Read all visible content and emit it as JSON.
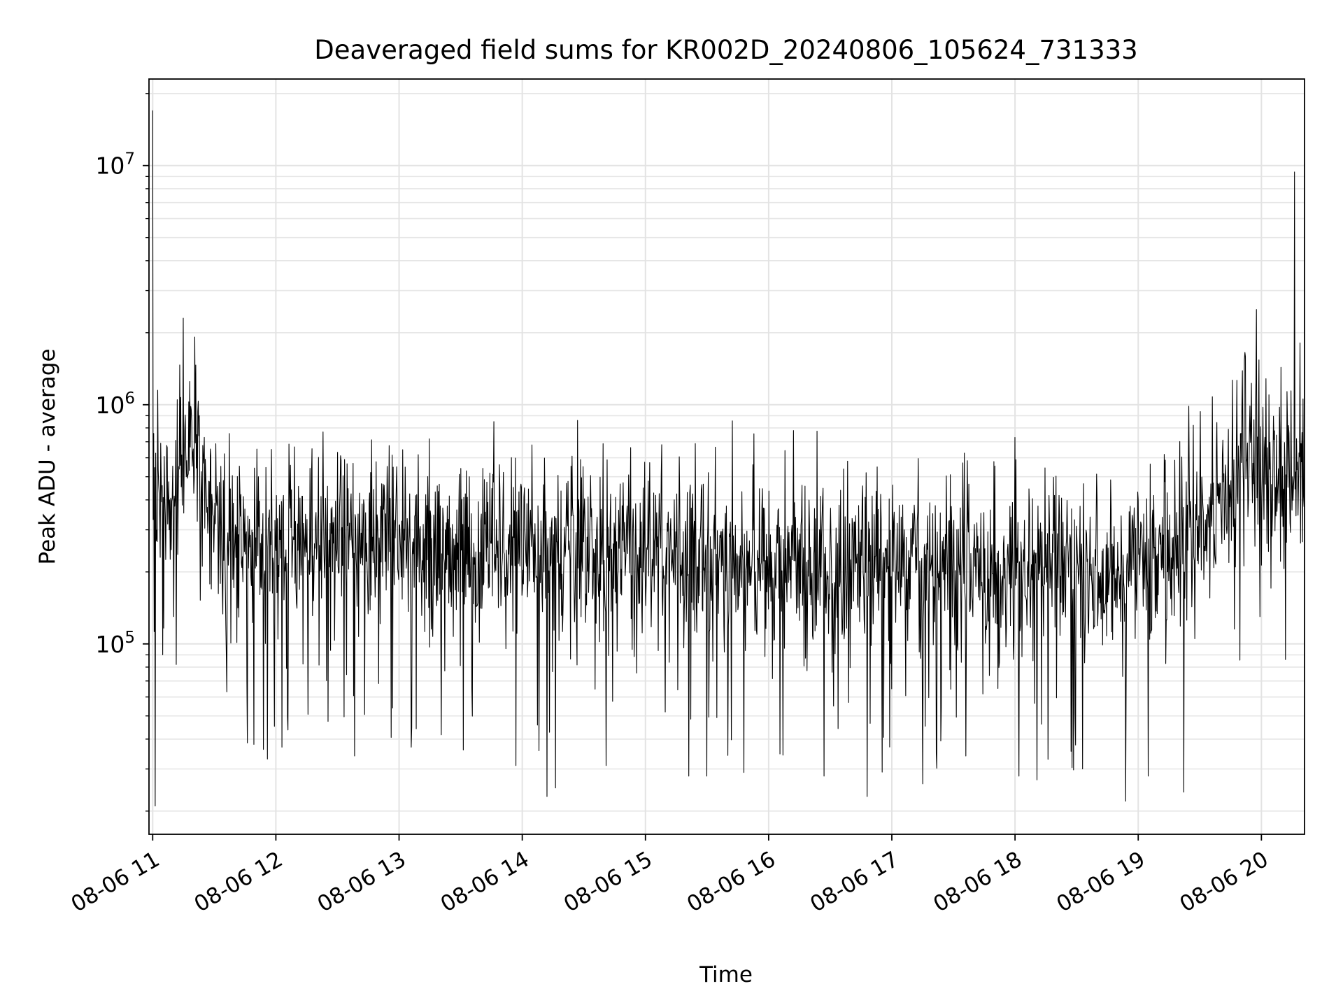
{
  "chart_data": {
    "type": "line",
    "title": "Deaveraged field sums for KR002D_20240806_105624_731333",
    "xlabel": "Time",
    "ylabel": "Peak ADU - average",
    "yscale": "log",
    "ylim": [
      16000,
      23000000
    ],
    "xlim_hours": [
      10.97,
      20.35
    ],
    "grid": true,
    "x_ticks": [
      {
        "label": "08-06 11",
        "hour": 11
      },
      {
        "label": "08-06 12",
        "hour": 12
      },
      {
        "label": "08-06 13",
        "hour": 13
      },
      {
        "label": "08-06 14",
        "hour": 14
      },
      {
        "label": "08-06 15",
        "hour": 15
      },
      {
        "label": "08-06 16",
        "hour": 16
      },
      {
        "label": "08-06 17",
        "hour": 17
      },
      {
        "label": "08-06 18",
        "hour": 18
      },
      {
        "label": "08-06 19",
        "hour": 19
      },
      {
        "label": "08-06 20",
        "hour": 20
      }
    ],
    "y_ticks": [
      {
        "base": "10",
        "exp": "5",
        "value": 100000
      },
      {
        "base": "10",
        "exp": "6",
        "value": 1000000
      },
      {
        "base": "10",
        "exp": "7",
        "value": 10000000
      }
    ],
    "series": [
      {
        "name": "field sums",
        "color": "#000000",
        "baseline_profile": [
          [
            10.97,
            450000
          ],
          [
            11.1,
            330000
          ],
          [
            11.25,
            600000
          ],
          [
            11.35,
            850000
          ],
          [
            11.45,
            330000
          ],
          [
            11.7,
            260000
          ],
          [
            11.9,
            250000
          ],
          [
            12.3,
            280000
          ],
          [
            13.0,
            270000
          ],
          [
            13.5,
            250000
          ],
          [
            14.0,
            245000
          ],
          [
            14.5,
            240000
          ],
          [
            15.0,
            230000
          ],
          [
            15.5,
            225000
          ],
          [
            16.0,
            215000
          ],
          [
            16.5,
            205000
          ],
          [
            17.0,
            200000
          ],
          [
            17.5,
            200000
          ],
          [
            18.0,
            195000
          ],
          [
            18.5,
            190000
          ],
          [
            19.0,
            200000
          ],
          [
            19.3,
            240000
          ],
          [
            19.6,
            330000
          ],
          [
            19.85,
            500000
          ],
          [
            19.95,
            800000
          ],
          [
            20.05,
            480000
          ],
          [
            20.2,
            500000
          ],
          [
            20.35,
            520000
          ]
        ],
        "peaks": [
          {
            "hour": 11.0,
            "value": 17000000
          },
          {
            "hour": 11.25,
            "value": 2300000
          },
          {
            "hour": 11.04,
            "value": 1150000
          },
          {
            "hour": 11.2,
            "value": 1050000
          },
          {
            "hour": 11.3,
            "value": 1250000
          },
          {
            "hour": 12.05,
            "value": 770000
          },
          {
            "hour": 13.77,
            "value": 850000
          },
          {
            "hour": 14.45,
            "value": 860000
          },
          {
            "hour": 16.2,
            "value": 780000
          },
          {
            "hour": 18.0,
            "value": 730000
          },
          {
            "hour": 19.6,
            "value": 1080000
          },
          {
            "hour": 19.96,
            "value": 2500000
          },
          {
            "hour": 20.06,
            "value": 1100000
          },
          {
            "hour": 20.27,
            "value": 9400000
          }
        ],
        "dips": [
          {
            "hour": 11.02,
            "value": 21000
          },
          {
            "hour": 11.08,
            "value": 90000
          },
          {
            "hour": 11.19,
            "value": 82000
          },
          {
            "hour": 11.6,
            "value": 63000
          },
          {
            "hour": 11.82,
            "value": 38000
          },
          {
            "hour": 11.93,
            "value": 33000
          },
          {
            "hour": 12.05,
            "value": 37000
          },
          {
            "hour": 12.64,
            "value": 34000
          },
          {
            "hour": 13.1,
            "value": 37000
          },
          {
            "hour": 13.52,
            "value": 36000
          },
          {
            "hour": 13.95,
            "value": 31000
          },
          {
            "hour": 14.2,
            "value": 23000
          },
          {
            "hour": 14.27,
            "value": 25000
          },
          {
            "hour": 14.68,
            "value": 31000
          },
          {
            "hour": 15.35,
            "value": 28000
          },
          {
            "hour": 15.5,
            "value": 28000
          },
          {
            "hour": 15.8,
            "value": 29000
          },
          {
            "hour": 16.45,
            "value": 28000
          },
          {
            "hour": 16.8,
            "value": 23000
          },
          {
            "hour": 17.25,
            "value": 26000
          },
          {
            "hour": 17.6,
            "value": 34000
          },
          {
            "hour": 18.03,
            "value": 28000
          },
          {
            "hour": 18.18,
            "value": 27000
          },
          {
            "hour": 18.55,
            "value": 30000
          },
          {
            "hour": 18.9,
            "value": 22000
          },
          {
            "hour": 19.08,
            "value": 28000
          },
          {
            "hour": 19.37,
            "value": 24000
          },
          {
            "hour": 19.99,
            "value": 130000
          }
        ]
      }
    ]
  }
}
